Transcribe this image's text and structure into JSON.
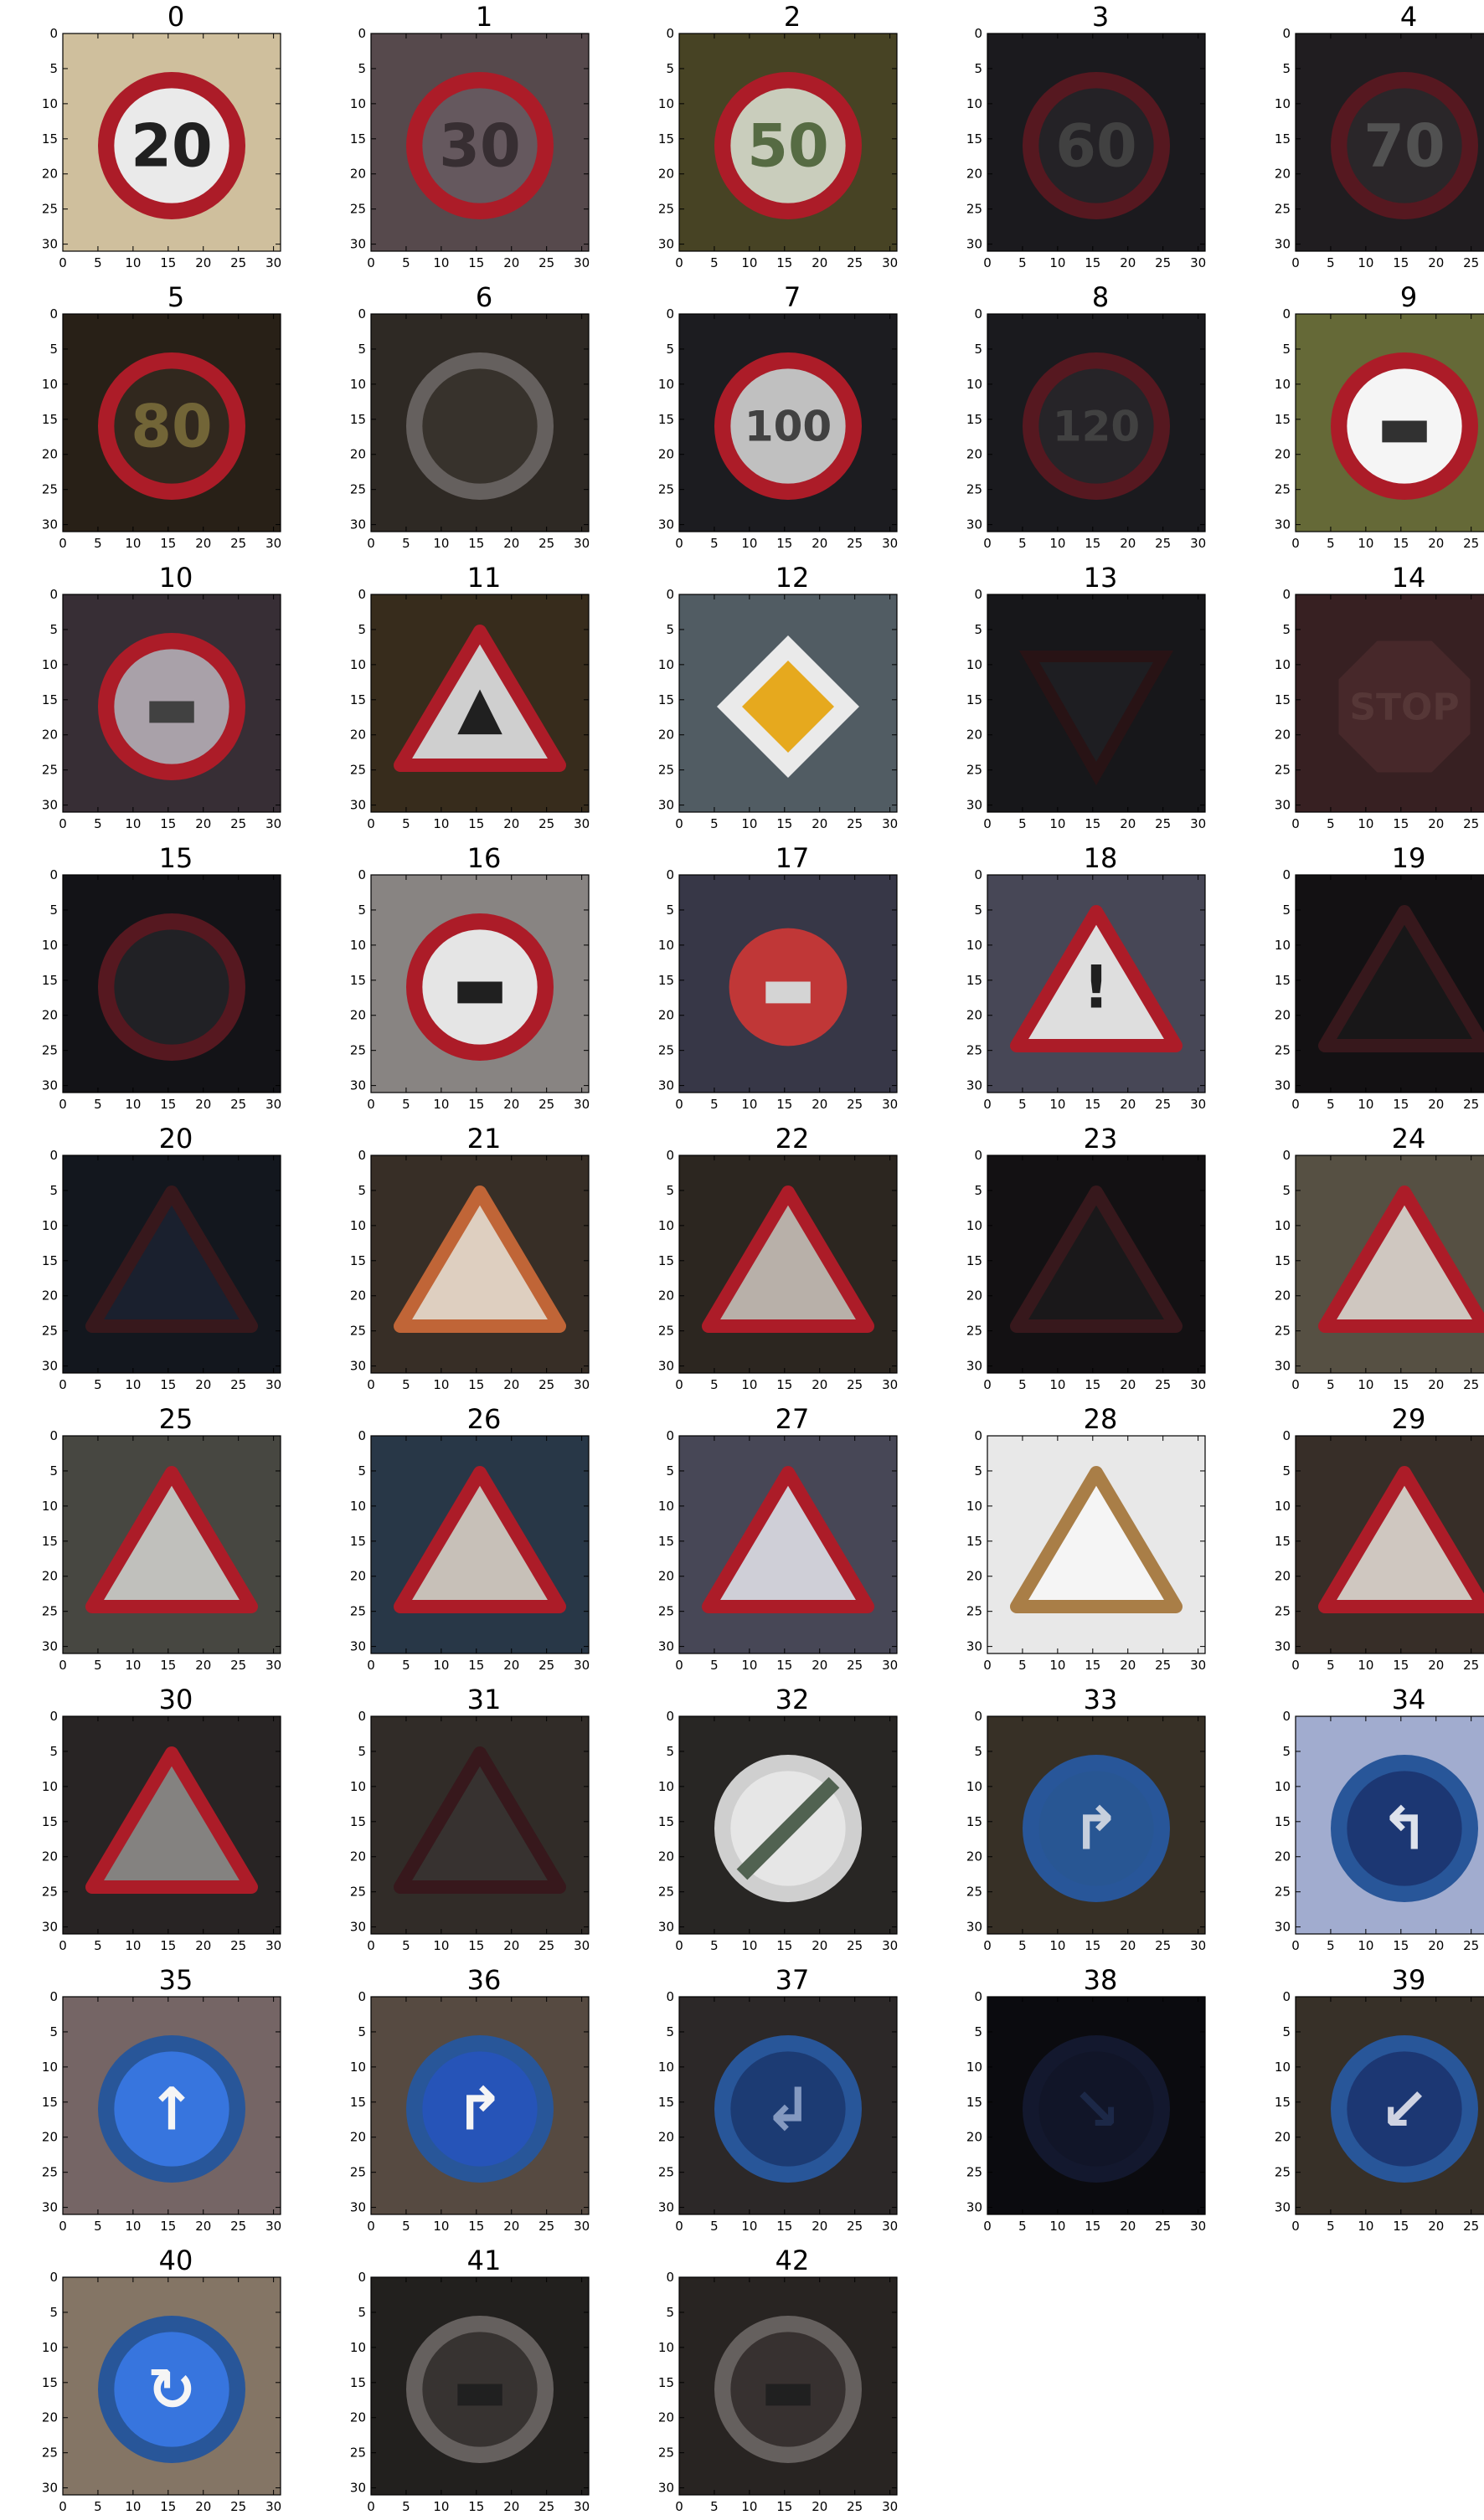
{
  "figure": {
    "panels": [
      {
        "title": "0",
        "bg": "#d8c7a4",
        "mark": "circle-red",
        "center": "#f4f4f4",
        "ink": "#222",
        "glyph": "20"
      },
      {
        "title": "1",
        "bg": "#5a4c50",
        "mark": "circle-red",
        "center": "#6a5c62",
        "ink": "#3a3035",
        "glyph": "30"
      },
      {
        "title": "2",
        "bg": "#4a4626",
        "mark": "circle-red",
        "center": "#d2d6c4",
        "ink": "#5a7046",
        "glyph": "50"
      },
      {
        "title": "3",
        "bg": "#1d1c20",
        "mark": "circle-red",
        "center": "#262428",
        "ink": "#444",
        "glyph": "60"
      },
      {
        "title": "4",
        "bg": "#221f22",
        "mark": "circle-red",
        "center": "#2c282b",
        "ink": "#555",
        "glyph": "70"
      },
      {
        "title": "5",
        "bg": "#2a2218",
        "mark": "circle-red",
        "center": "#332a20",
        "ink": "#776a3a",
        "glyph": "80"
      },
      {
        "title": "6",
        "bg": "#302b26",
        "mark": "circle-grey",
        "center": "#3a352e",
        "ink": "#555",
        "glyph": ""
      },
      {
        "title": "7",
        "bg": "#1e1e22",
        "mark": "circle-red",
        "center": "#c8c8c8",
        "ink": "#444",
        "glyph": "100"
      },
      {
        "title": "8",
        "bg": "#1c1c20",
        "mark": "circle-red",
        "center": "#28262a",
        "ink": "#444",
        "glyph": "120"
      },
      {
        "title": "9",
        "bg": "#6a6e3a",
        "mark": "circle-red",
        "center": "#ffffff",
        "ink": "#333",
        "glyph": "▬"
      },
      {
        "title": "10",
        "bg": "#3a3038",
        "mark": "circle-red",
        "center": "#b0a8b0",
        "ink": "#444",
        "glyph": "▬"
      },
      {
        "title": "11",
        "bg": "#3a2e1e",
        "mark": "tri-red",
        "center": "#d8d8d8",
        "ink": "#222",
        "glyph": "▲"
      },
      {
        "title": "12",
        "bg": "#556068",
        "mark": "diamond",
        "center": "#f0b020",
        "ink": "#333",
        "glyph": ""
      },
      {
        "title": "13",
        "bg": "#18181c",
        "mark": "tri-down",
        "center": "#202024",
        "ink": "#333",
        "glyph": ""
      },
      {
        "title": "14",
        "bg": "#3a2224",
        "mark": "octagon",
        "center": "#4a2a2c",
        "ink": "#5a3a3a",
        "glyph": "STOP"
      },
      {
        "title": "15",
        "bg": "#141418",
        "mark": "circle-red",
        "center": "#232327",
        "ink": "#333",
        "glyph": ""
      },
      {
        "title": "16",
        "bg": "#8e8a88",
        "mark": "circle-red",
        "center": "#efefef",
        "ink": "#222",
        "glyph": "▬"
      },
      {
        "title": "17",
        "bg": "#3a3a4a",
        "mark": "circle-red-full",
        "center": "#c83a3a",
        "ink": "#ddd",
        "glyph": "▬"
      },
      {
        "title": "18",
        "bg": "#4a4a5a",
        "mark": "tri-red",
        "center": "#e8e8e8",
        "ink": "#222",
        "glyph": "!"
      },
      {
        "title": "19",
        "bg": "#141214",
        "mark": "tri-red-dim",
        "center": "#1a181a",
        "ink": "#222",
        "glyph": ""
      },
      {
        "title": "20",
        "bg": "#141820",
        "mark": "tri-red-dim",
        "center": "#1c2230",
        "ink": "#335",
        "glyph": ""
      },
      {
        "title": "21",
        "bg": "#3a3028",
        "mark": "tri-orange",
        "center": "#e8d8c8",
        "ink": "#222",
        "glyph": ""
      },
      {
        "title": "22",
        "bg": "#2e2822",
        "mark": "tri-red",
        "center": "#c0b8b0",
        "ink": "#333",
        "glyph": ""
      },
      {
        "title": "23",
        "bg": "#141214",
        "mark": "tri-red-dim",
        "center": "#1c1a1c",
        "ink": "#222",
        "glyph": ""
      },
      {
        "title": "24",
        "bg": "#5a5446",
        "mark": "tri-red",
        "center": "#d8d0c8",
        "ink": "#444",
        "glyph": ""
      },
      {
        "title": "25",
        "bg": "#4a4a44",
        "mark": "tri-red",
        "center": "#c8c8c4",
        "ink": "#333",
        "glyph": ""
      },
      {
        "title": "26",
        "bg": "#2a3a4a",
        "mark": "tri-red",
        "center": "#d0c8c0",
        "ink": "#663",
        "glyph": ""
      },
      {
        "title": "27",
        "bg": "#4a4a5a",
        "mark": "tri-red",
        "center": "#d8d8e0",
        "ink": "#222",
        "glyph": ""
      },
      {
        "title": "28",
        "bg": "#f2f2f2",
        "mark": "tri-orange",
        "center": "#ffffff",
        "ink": "#333",
        "glyph": ""
      },
      {
        "title": "29",
        "bg": "#3a302a",
        "mark": "tri-red",
        "center": "#d8d0c8",
        "ink": "#444",
        "glyph": ""
      },
      {
        "title": "30",
        "bg": "#2a2626",
        "mark": "tri-red",
        "center": "#8a8886",
        "ink": "#333",
        "glyph": ""
      },
      {
        "title": "31",
        "bg": "#332e2a",
        "mark": "tri-red-dim",
        "center": "#3a3532",
        "ink": "#444",
        "glyph": ""
      },
      {
        "title": "32",
        "bg": "#2a2826",
        "mark": "circle-white",
        "center": "#f0f0f0",
        "ink": "#556655",
        "glyph": ""
      },
      {
        "title": "33",
        "bg": "#3a3228",
        "mark": "circle-blue",
        "center": "#2a5a9a",
        "ink": "#cfd8e6",
        "glyph": "↱"
      },
      {
        "title": "34",
        "bg": "#a8b4d8",
        "mark": "circle-blue",
        "center": "#1e3a78",
        "ink": "#e6ecf6",
        "glyph": "↰"
      },
      {
        "title": "35",
        "bg": "#7a6a6a",
        "mark": "circle-blue",
        "center": "#3a7ae8",
        "ink": "#ffffff",
        "glyph": "↑"
      },
      {
        "title": "36",
        "bg": "#5a4e44",
        "mark": "circle-blue",
        "center": "#2858c0",
        "ink": "#ffffff",
        "glyph": "↱"
      },
      {
        "title": "37",
        "bg": "#2e2a2a",
        "mark": "circle-blue",
        "center": "#1e3e78",
        "ink": "#8aa0c8",
        "glyph": "↲"
      },
      {
        "title": "38",
        "bg": "#0c0c10",
        "mark": "circle-blue",
        "center": "#12162a",
        "ink": "#1e2a4a",
        "glyph": "↘"
      },
      {
        "title": "39",
        "bg": "#3a322a",
        "mark": "circle-blue",
        "center": "#1e3a78",
        "ink": "#d8dcec",
        "glyph": "↙"
      },
      {
        "title": "40",
        "bg": "#8a7a6a",
        "mark": "circle-blue",
        "center": "#3a7ae8",
        "ink": "#ffffff",
        "glyph": "↻"
      },
      {
        "title": "41",
        "bg": "#242220",
        "mark": "circle-grey",
        "center": "#3a3634",
        "ink": "#222",
        "glyph": "▬"
      },
      {
        "title": "42",
        "bg": "#2a2624",
        "mark": "circle-grey",
        "center": "#3a3432",
        "ink": "#222",
        "glyph": "▬"
      }
    ],
    "xticks": [
      "0",
      "5",
      "10",
      "15",
      "20",
      "25",
      "30"
    ],
    "yticks": [
      "0",
      "5",
      "10",
      "15",
      "20",
      "25",
      "30"
    ],
    "axis_range": [
      0,
      31
    ]
  }
}
